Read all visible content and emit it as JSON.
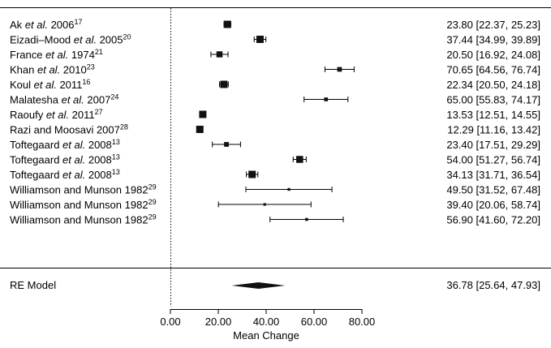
{
  "chart_data": {
    "type": "forest",
    "xlabel": "Mean Change",
    "xlim": [
      0,
      80
    ],
    "xticks": [
      0,
      20,
      40,
      60,
      80
    ],
    "xtick_labels": [
      "0.00",
      "20.00",
      "40.00",
      "60.00",
      "80.00"
    ],
    "studies": [
      {
        "author": "Ak",
        "etal": " et al.",
        "year": " 2006",
        "ref": "17",
        "est": 23.8,
        "lo": 22.37,
        "hi": 25.23,
        "ci_text": "23.80 [22.37, 25.23]"
      },
      {
        "author": "Eizadi–Mood",
        "etal": " et al.",
        "year": " 2005",
        "ref": "20",
        "est": 37.44,
        "lo": 34.99,
        "hi": 39.89,
        "ci_text": "37.44 [34.99, 39.89]"
      },
      {
        "author": "France",
        "etal": " et al.",
        "year": " 1974",
        "ref": "21",
        "est": 20.5,
        "lo": 16.92,
        "hi": 24.08,
        "ci_text": "20.50 [16.92, 24.08]"
      },
      {
        "author": "Khan",
        "etal": " et al.",
        "year": " 2010",
        "ref": "23",
        "est": 70.65,
        "lo": 64.56,
        "hi": 76.74,
        "ci_text": "70.65 [64.56, 76.74]"
      },
      {
        "author": "Koul",
        "etal": " et al.",
        "year": " 2011",
        "ref": "16",
        "est": 22.34,
        "lo": 20.5,
        "hi": 24.18,
        "ci_text": "22.34 [20.50, 24.18]"
      },
      {
        "author": "Malatesha",
        "etal": " et al.",
        "year": " 2007",
        "ref": "24",
        "est": 65.0,
        "lo": 55.83,
        "hi": 74.17,
        "ci_text": "65.00 [55.83, 74.17]"
      },
      {
        "author": "Raoufy",
        "etal": " et al.",
        "year": " 2011",
        "ref": "27",
        "est": 13.53,
        "lo": 12.51,
        "hi": 14.55,
        "ci_text": "13.53 [12.51, 14.55]"
      },
      {
        "author": "Razi and Moosavi",
        "etal": "",
        "year": " 2007",
        "ref": "28",
        "est": 12.29,
        "lo": 11.16,
        "hi": 13.42,
        "ci_text": "12.29 [11.16, 13.42]"
      },
      {
        "author": "Toftegaard",
        "etal": " et al.",
        "year": " 2008",
        "ref": "13",
        "est": 23.4,
        "lo": 17.51,
        "hi": 29.29,
        "ci_text": "23.40 [17.51, 29.29]"
      },
      {
        "author": "Toftegaard",
        "etal": " et al.",
        "year": " 2008",
        "ref": "13",
        "est": 54.0,
        "lo": 51.27,
        "hi": 56.74,
        "ci_text": "54.00 [51.27, 56.74]"
      },
      {
        "author": "Toftegaard",
        "etal": " et al.",
        "year": " 2008",
        "ref": "13",
        "est": 34.13,
        "lo": 31.71,
        "hi": 36.54,
        "ci_text": "34.13 [31.71, 36.54]"
      },
      {
        "author": "Williamson and Munson",
        "etal": "",
        "year": " 1982",
        "ref": "29",
        "est": 49.5,
        "lo": 31.52,
        "hi": 67.48,
        "ci_text": "49.50 [31.52, 67.48]"
      },
      {
        "author": "Williamson and Munson",
        "etal": "",
        "year": " 1982",
        "ref": "29",
        "est": 39.4,
        "lo": 20.06,
        "hi": 58.74,
        "ci_text": "39.40 [20.06, 58.74]"
      },
      {
        "author": "Williamson and Munson",
        "etal": "",
        "year": " 1982",
        "ref": "29",
        "est": 56.9,
        "lo": 41.6,
        "hi": 72.2,
        "ci_text": "56.90 [41.60, 72.20]"
      }
    ],
    "summary": {
      "label": "RE Model",
      "est": 36.78,
      "lo": 25.64,
      "hi": 47.93,
      "ci_text": "36.78 [25.64, 47.93]"
    }
  }
}
